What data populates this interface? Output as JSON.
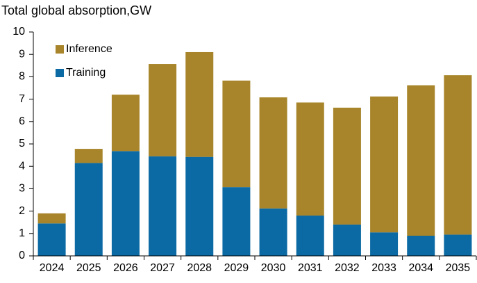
{
  "chart_data": {
    "type": "stacked_bar",
    "subtitle": "Total global absorption,GW",
    "categories": [
      "2024",
      "2025",
      "2026",
      "2027",
      "2028",
      "2029",
      "2030",
      "2031",
      "2032",
      "2033",
      "2034",
      "2035"
    ],
    "series": [
      {
        "name": "Training",
        "color": "#0b69a3",
        "values": [
          1.45,
          4.15,
          4.68,
          4.45,
          4.42,
          3.07,
          2.12,
          1.8,
          1.4,
          1.05,
          0.9,
          0.95
        ]
      },
      {
        "name": "Inference",
        "color": "#a8852a",
        "values": [
          0.45,
          0.63,
          2.52,
          4.12,
          4.68,
          4.76,
          4.96,
          5.05,
          5.22,
          6.07,
          6.72,
          7.12
        ]
      }
    ],
    "ylim": [
      0,
      10
    ],
    "yticks": [
      0,
      1,
      2,
      3,
      4,
      5,
      6,
      7,
      8,
      9,
      10
    ],
    "grid": false,
    "legend": "top-left"
  }
}
